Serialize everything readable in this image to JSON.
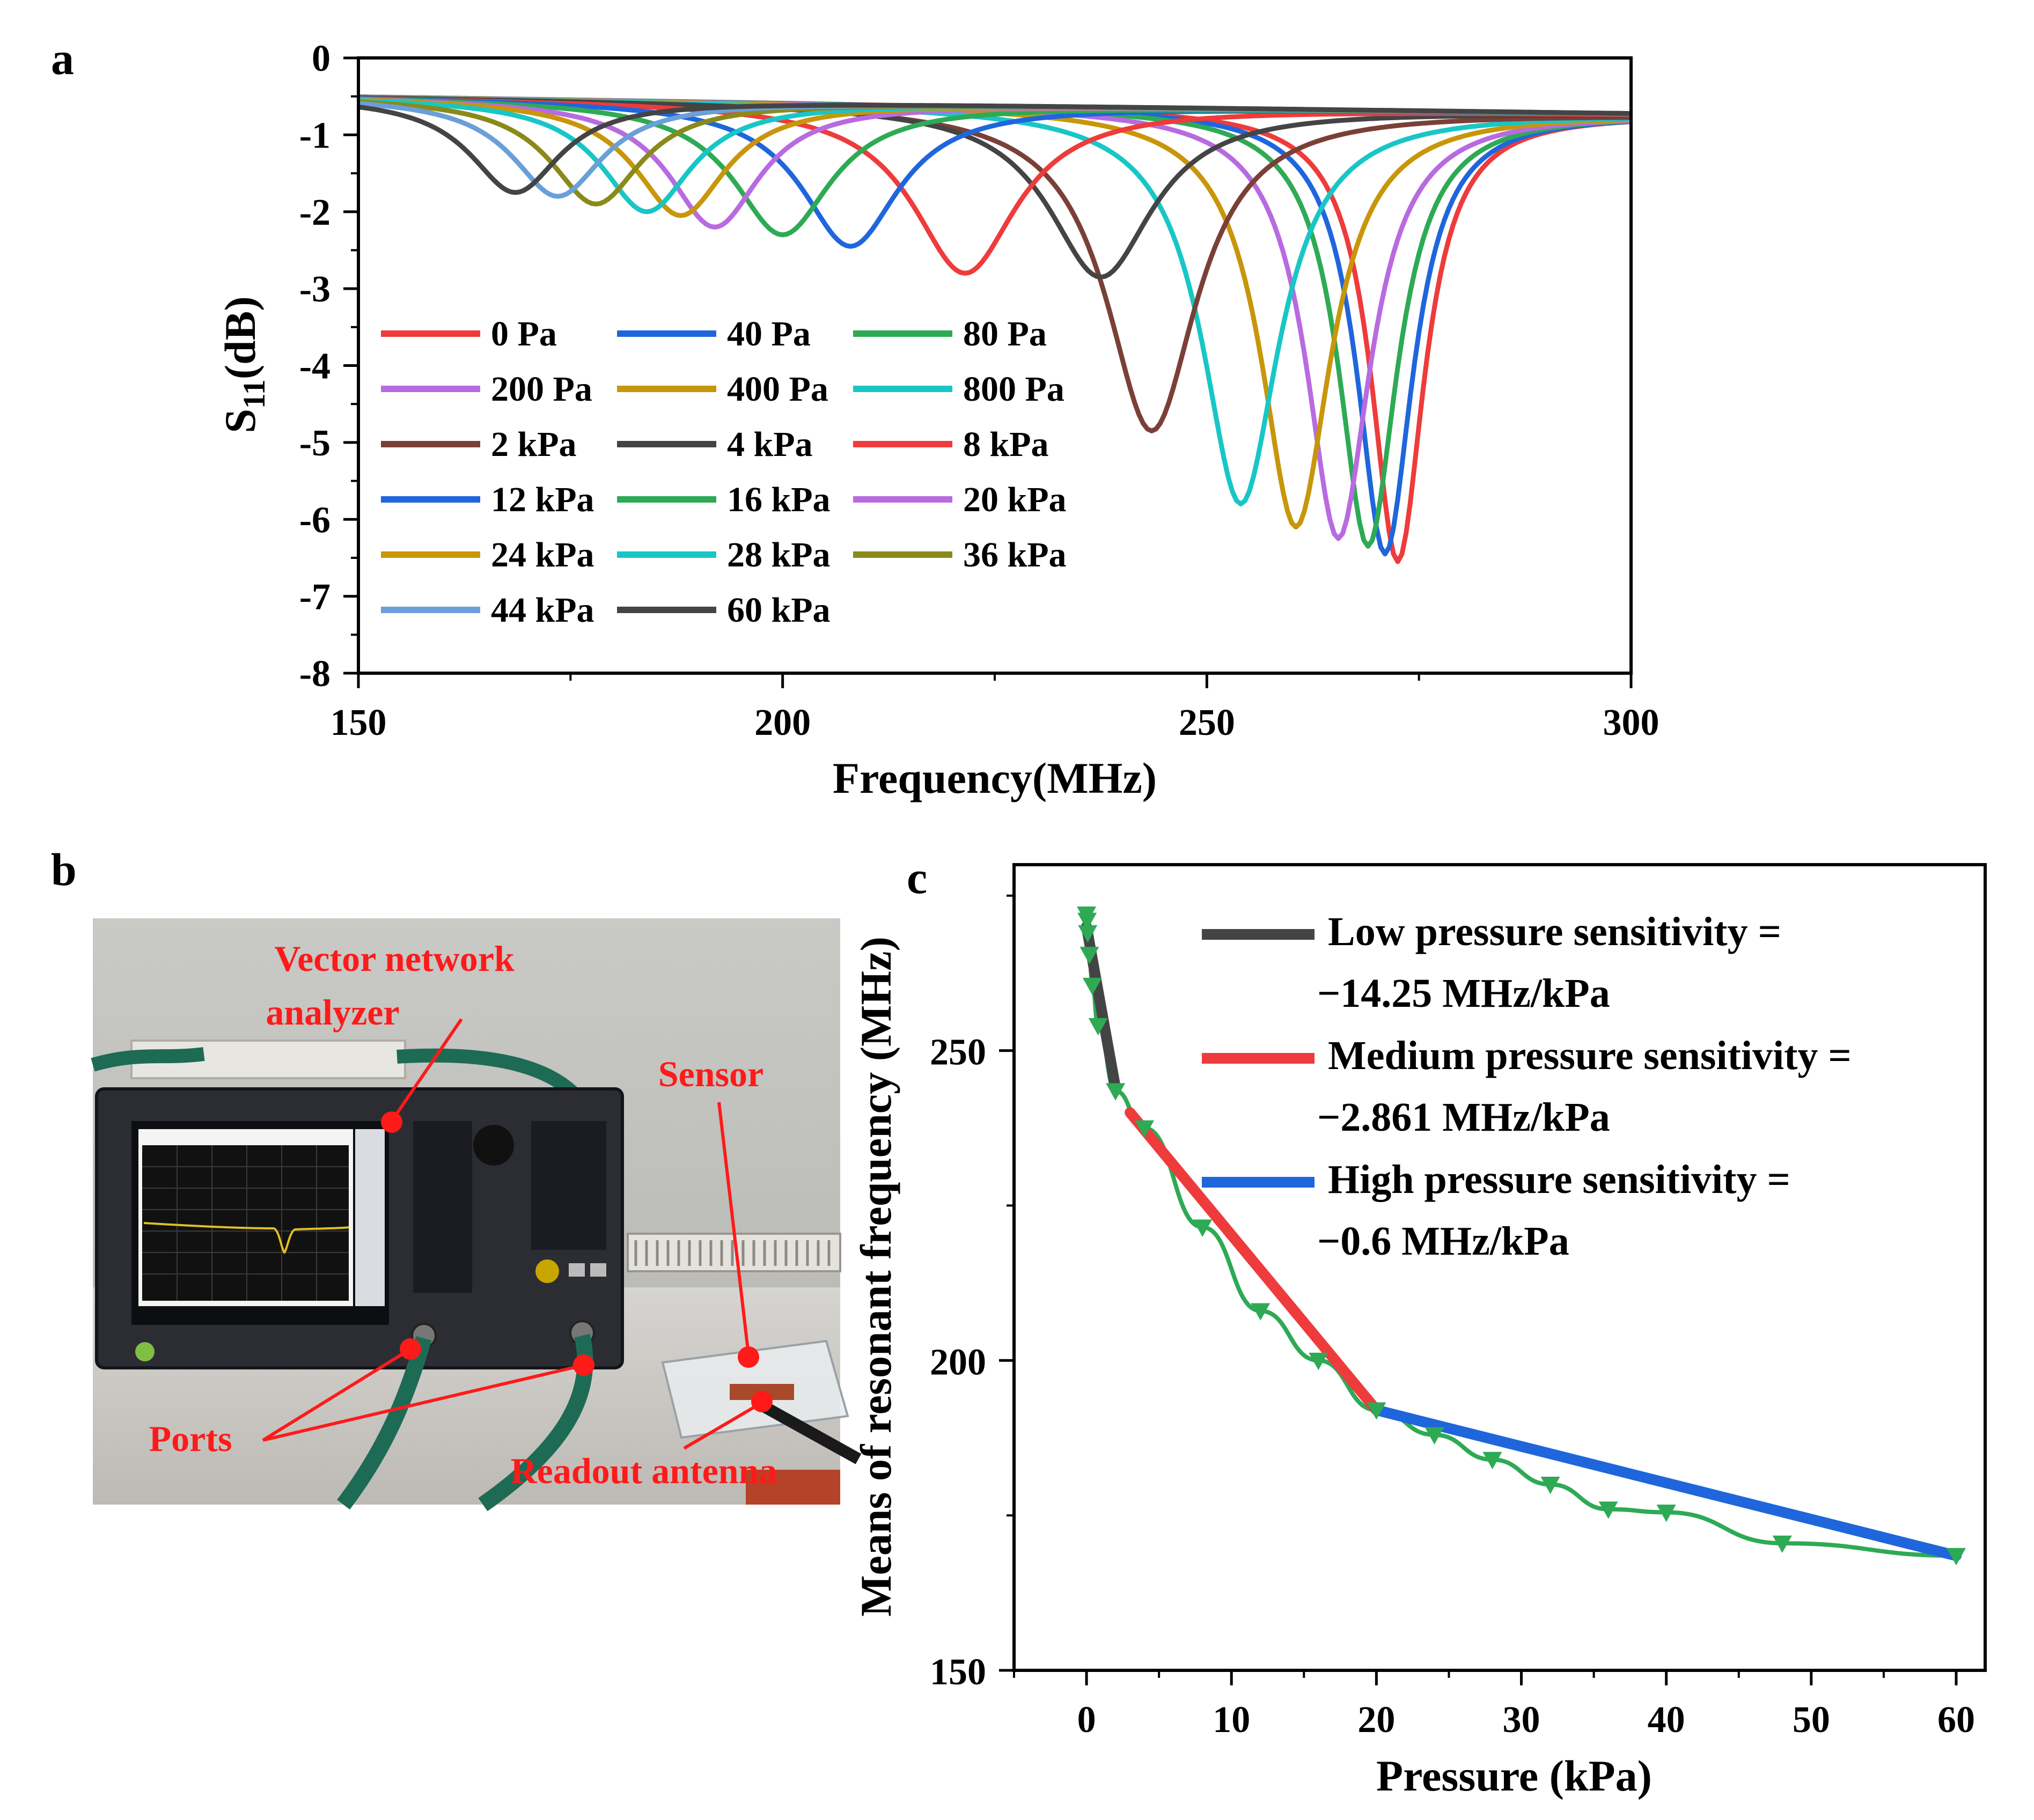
{
  "panels": {
    "a": "a",
    "b": "b",
    "c": "c"
  },
  "chart_data": [
    {
      "panel": "a",
      "type": "line",
      "xlabel": "Frequency(MHz)",
      "ylabel_main": "S",
      "ylabel_sub": "11",
      "ylabel_tail": "(dB)",
      "xlim": [
        150,
        300
      ],
      "ylim": [
        -8,
        0
      ],
      "xticks": [
        150,
        200,
        250,
        300
      ],
      "yticks": [
        0,
        -1,
        -2,
        -3,
        -4,
        -5,
        -6,
        -7,
        -8
      ],
      "legend_position": "left-middle",
      "series": [
        {
          "name": "0 Pa",
          "color": "#ee3b3b",
          "f0": 272.5,
          "depth": -6.55,
          "width": 3.8
        },
        {
          "name": "40 Pa",
          "color": "#1f66dd",
          "f0": 271.0,
          "depth": -6.45,
          "width": 4.0
        },
        {
          "name": "80 Pa",
          "color": "#2eaa55",
          "f0": 269.0,
          "depth": -6.35,
          "width": 4.2
        },
        {
          "name": "200 Pa",
          "color": "#b86be0",
          "f0": 265.5,
          "depth": -6.25,
          "width": 4.6
        },
        {
          "name": "400 Pa",
          "color": "#c8960a",
          "f0": 260.5,
          "depth": -6.1,
          "width": 5.0
        },
        {
          "name": "800 Pa",
          "color": "#19c6c6",
          "f0": 254.0,
          "depth": -5.8,
          "width": 5.5
        },
        {
          "name": "2 kPa",
          "color": "#7a4038",
          "f0": 243.5,
          "depth": -4.85,
          "width": 6.5
        },
        {
          "name": "4 kPa",
          "color": "#444444",
          "f0": 237.5,
          "depth": -2.85,
          "width": 7.5
        },
        {
          "name": "8 kPa",
          "color": "#ee3b3b",
          "f0": 221.5,
          "depth": -2.8,
          "width": 7.5
        },
        {
          "name": "12 kPa",
          "color": "#1f66dd",
          "f0": 208.0,
          "depth": -2.45,
          "width": 7.0
        },
        {
          "name": "16 kPa",
          "color": "#2eaa55",
          "f0": 200.0,
          "depth": -2.3,
          "width": 7.0
        },
        {
          "name": "20 kPa",
          "color": "#b86be0",
          "f0": 192.0,
          "depth": -2.2,
          "width": 6.5
        },
        {
          "name": "24 kPa",
          "color": "#c8960a",
          "f0": 188.0,
          "depth": -2.05,
          "width": 6.5
        },
        {
          "name": "28 kPa",
          "color": "#19c6c6",
          "f0": 184.0,
          "depth": -2.0,
          "width": 6.5
        },
        {
          "name": "36 kPa",
          "color": "#8a8a1a",
          "f0": 178.0,
          "depth": -1.9,
          "width": 6.5
        },
        {
          "name": "44 kPa",
          "color": "#6a9fd8",
          "f0": 173.5,
          "depth": -1.8,
          "width": 6.5
        },
        {
          "name": "60 kPa",
          "color": "#444444",
          "f0": 168.5,
          "depth": -1.75,
          "width": 6.5
        }
      ]
    },
    {
      "panel": "c",
      "type": "line",
      "xlabel": "Pressure (kPa)",
      "ylabel": "Means of resonant frequency (MHz)",
      "xlim": [
        -5,
        62
      ],
      "ylim": [
        150,
        280
      ],
      "xticks": [
        0,
        10,
        20,
        30,
        40,
        50,
        60
      ],
      "yticks": [
        150,
        200,
        250
      ],
      "legend_position": "top-right",
      "points": {
        "name": "Measured",
        "color": "#2eaa55",
        "x": [
          0,
          0.04,
          0.08,
          0.2,
          0.4,
          0.8,
          2,
          4,
          8,
          12,
          16,
          20,
          24,
          28,
          32,
          36,
          40,
          48,
          60
        ],
        "y": [
          272,
          271,
          269,
          265.5,
          260.5,
          254,
          243.5,
          237.5,
          221.5,
          208,
          200,
          192,
          188,
          184,
          180,
          176,
          175.5,
          170.5,
          168.5
        ]
      },
      "fits": [
        {
          "label_line1": "Low pressure sensitivity =",
          "label_line2": "−14.25 MHz/kPa",
          "color": "#444444",
          "x": [
            0,
            2
          ],
          "y": [
            270,
            244
          ]
        },
        {
          "label_line1": "Medium pressure sensitivity =",
          "label_line2": "−2.861 MHz/kPa",
          "color": "#ee3b3b",
          "x": [
            3,
            20
          ],
          "y": [
            240,
            192
          ]
        },
        {
          "label_line1": "High pressure sensitivity =",
          "label_line2": "−0.6 MHz/kPa",
          "color": "#1f66dd",
          "x": [
            20,
            60
          ],
          "y": [
            192,
            168.5
          ]
        }
      ]
    }
  ],
  "photo": {
    "callouts": {
      "vna_line1": "Vector network",
      "vna_line2": "analyzer",
      "sensor": "Sensor",
      "ports": "Ports",
      "antenna": "Readout antenna"
    },
    "colors": {
      "callout": "#ff1a1a",
      "cable": "#1e6b55",
      "instrument": "#2b2d33"
    }
  }
}
